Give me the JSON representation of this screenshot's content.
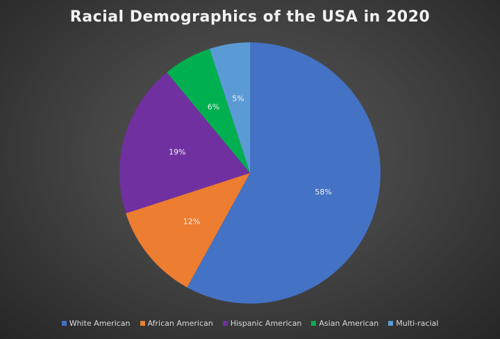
{
  "chart_data": {
    "type": "pie",
    "title": "Racial Demographics of the USA in 2020",
    "categories": [
      "White American",
      "African American",
      "Hispanic American",
      "Asian American",
      "Multi-racial"
    ],
    "values": [
      58,
      12,
      19,
      6,
      5
    ],
    "labels": [
      "58%",
      "12%",
      "19%",
      "6%",
      "5%"
    ],
    "colors": [
      "#4472C4",
      "#ED7D31",
      "#7030A0",
      "#00B050",
      "#5B9BD5"
    ],
    "legend_position": "bottom",
    "start_angle": "12 o'clock, clockwise"
  }
}
